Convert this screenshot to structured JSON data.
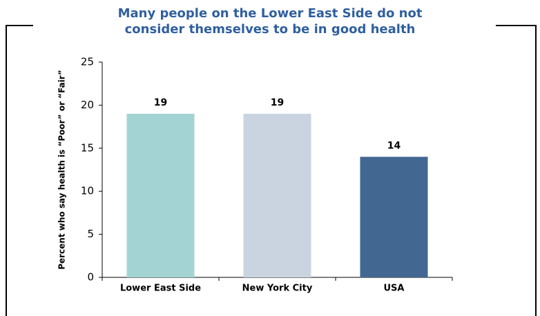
{
  "chart_data": {
    "type": "bar",
    "title": "Many people on the Lower East Side do not consider themselves to be in good health",
    "y_label": "Percent who say health is “Poor” or “Fair”",
    "categories": [
      "Lower East Side",
      "New York City",
      "USA"
    ],
    "values": [
      19,
      19,
      14
    ],
    "colors": [
      "#a3d4d3",
      "#c9d4e0",
      "#426791"
    ],
    "ylim": [
      0,
      25
    ],
    "yticks": [
      0,
      5,
      10,
      15,
      20,
      25
    ],
    "grid": false
  }
}
